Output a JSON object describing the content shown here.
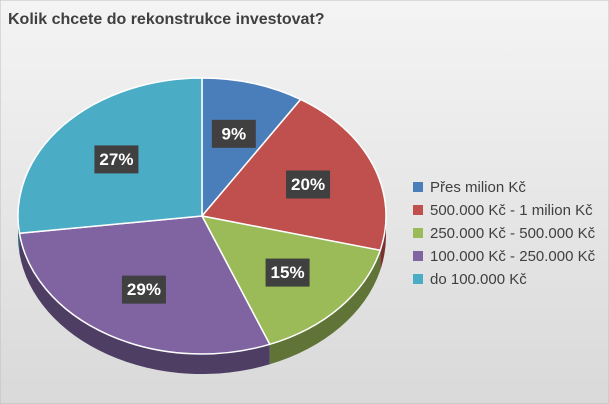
{
  "chart_data": {
    "type": "pie",
    "title": "Kolik chcete do rekonstrukce investovat?",
    "categories": [
      "Přes milion Kč",
      "500.000 Kč - 1 milion Kč",
      "250.000 Kč - 500.000 Kč",
      "100.000 Kč - 250.000 Kč",
      "do 100.000 Kč"
    ],
    "values": [
      9,
      20,
      15,
      29,
      27
    ],
    "value_labels": [
      "9%",
      "20%",
      "15%",
      "29%",
      "27%"
    ],
    "colors": [
      "#4a7ebb",
      "#c0504d",
      "#9bbb59",
      "#8064a2",
      "#4bacc6"
    ],
    "legend": "right"
  }
}
